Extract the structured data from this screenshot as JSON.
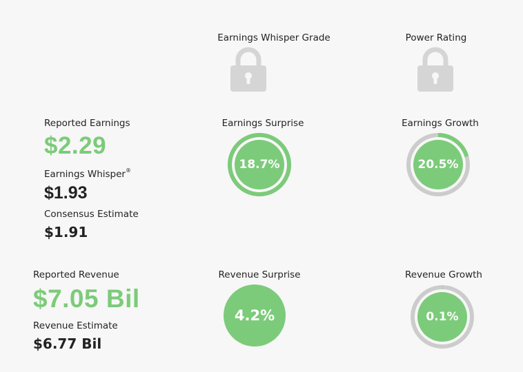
{
  "grades": {
    "whisper_grade_label": "Earnings Whisper Grade",
    "power_rating_label": "Power Rating",
    "lock_icon": "lock-icon"
  },
  "earnings": {
    "reported_label": "Reported Earnings",
    "reported_value": "$2.29",
    "whisper_label": "Earnings Whisper",
    "whisper_mark": "®",
    "whisper_value": "$1.93",
    "consensus_label": "Consensus Estimate",
    "consensus_value": "$1.91"
  },
  "revenue": {
    "reported_label": "Reported Revenue",
    "reported_value": "$7.05 Bil",
    "estimate_label": "Revenue Estimate",
    "estimate_value": "$6.77 Bil"
  },
  "metrics": {
    "earnings_surprise": {
      "label": "Earnings Surprise",
      "value": "18.7%",
      "fill_fraction": 1.0
    },
    "earnings_growth": {
      "label": "Earnings Growth",
      "value": "20.5%",
      "fill_fraction": 0.205
    },
    "revenue_surprise": {
      "label": "Revenue Surprise",
      "value": "4.2%"
    },
    "revenue_growth": {
      "label": "Revenue Growth",
      "value": "0.1%",
      "fill_fraction": 0.001
    }
  },
  "colors": {
    "green": "#7ccb7a",
    "gray_ring": "#cccccc",
    "lock_gray": "#d5d5d5",
    "background": "#f7f7f7"
  }
}
